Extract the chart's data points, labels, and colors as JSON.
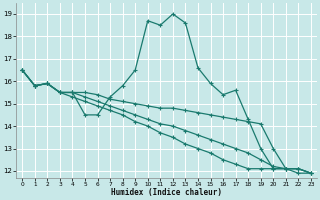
{
  "xlabel": "Humidex (Indice chaleur)",
  "background_color": "#c8e8e8",
  "grid_color": "#ffffff",
  "line_color": "#1a7a6e",
  "xlim": [
    -0.5,
    23.5
  ],
  "ylim": [
    11.7,
    19.5
  ],
  "xtick_vals": [
    0,
    1,
    2,
    3,
    4,
    5,
    6,
    7,
    8,
    9,
    10,
    11,
    12,
    13,
    14,
    15,
    16,
    17,
    18,
    19,
    20,
    21,
    22,
    23
  ],
  "ytick_vals": [
    12,
    13,
    14,
    15,
    16,
    17,
    18,
    19
  ],
  "lines": [
    [
      16.5,
      15.8,
      15.9,
      15.5,
      15.5,
      14.5,
      14.5,
      15.3,
      15.8,
      16.5,
      18.7,
      18.5,
      19.0,
      18.6,
      16.6,
      15.9,
      15.4,
      15.6,
      14.3,
      13.0,
      12.1,
      12.1,
      11.9,
      11.9
    ],
    [
      16.5,
      15.8,
      15.9,
      15.5,
      15.5,
      15.5,
      15.4,
      15.2,
      15.1,
      15.0,
      14.9,
      14.8,
      14.8,
      14.7,
      14.6,
      14.5,
      14.4,
      14.3,
      14.2,
      14.1,
      13.0,
      12.1,
      12.1,
      11.9
    ],
    [
      16.5,
      15.8,
      15.9,
      15.5,
      15.5,
      15.3,
      15.1,
      14.9,
      14.7,
      14.5,
      14.3,
      14.1,
      14.0,
      13.8,
      13.6,
      13.4,
      13.2,
      13.0,
      12.8,
      12.5,
      12.2,
      12.1,
      12.1,
      11.9
    ],
    [
      16.5,
      15.8,
      15.9,
      15.5,
      15.3,
      15.1,
      14.9,
      14.7,
      14.5,
      14.2,
      14.0,
      13.7,
      13.5,
      13.2,
      13.0,
      12.8,
      12.5,
      12.3,
      12.1,
      12.1,
      12.1,
      12.1,
      12.1,
      11.9
    ]
  ]
}
